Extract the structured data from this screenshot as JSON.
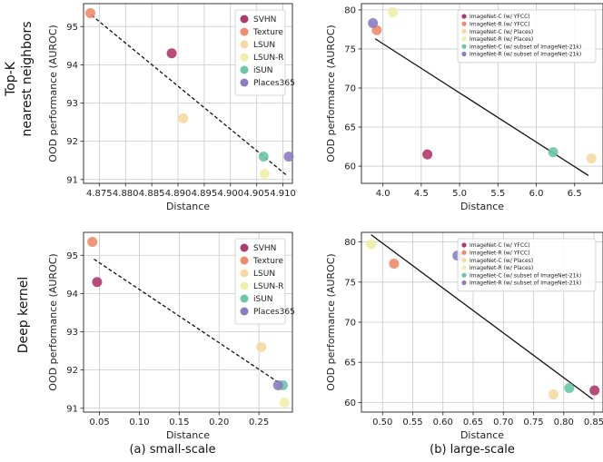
{
  "row_labels": [
    [
      "Top-K",
      "nearest neighbors"
    ],
    [
      "Deep kernel"
    ]
  ],
  "captions": [
    "(a) small-scale",
    "(b) large-scale"
  ],
  "chart_data": [
    {
      "type": "scatter",
      "title": "",
      "xlabel": "Distance",
      "ylabel": "OOD performance (AUROC)",
      "xlim": [
        4.872,
        4.9118
      ],
      "ylim": [
        90.9,
        95.6
      ],
      "xticks": [
        4.875,
        4.88,
        4.885,
        4.89,
        4.895,
        4.9,
        4.905,
        4.91
      ],
      "xtick_labels": [
        "4.875",
        "4.880",
        "4.885",
        "4.890",
        "4.895",
        "4.900",
        "4.905",
        "4.910"
      ],
      "yticks": [
        91,
        92,
        93,
        94,
        95
      ],
      "ytick_labels": [
        "91",
        "92",
        "93",
        "94",
        "95"
      ],
      "grid": true,
      "legend": "top-right",
      "legend_size": "normal",
      "series": [
        {
          "name": "SVHN",
          "color": "#b03a6e",
          "x": 4.8888,
          "y": 94.3
        },
        {
          "name": "Texture",
          "color": "#f08a6a",
          "x": 4.8733,
          "y": 95.35
        },
        {
          "name": "LSUN",
          "color": "#f5d9a0",
          "x": 4.891,
          "y": 92.6
        },
        {
          "name": "LSUN-R",
          "color": "#eef0a8",
          "x": 4.9065,
          "y": 91.15
        },
        {
          "name": "iSUN",
          "color": "#6cc7a7",
          "x": 4.9063,
          "y": 91.6
        },
        {
          "name": "Places365",
          "color": "#8c7cc0",
          "x": 4.9111,
          "y": 91.6
        }
      ],
      "trend": {
        "x": [
          4.8735,
          4.9108
        ],
        "y": [
          95.3,
          91.1
        ],
        "style": "dashed"
      }
    },
    {
      "type": "scatter",
      "title": "",
      "xlabel": "Distance",
      "ylabel": "OOD performance (AUROC)",
      "xlim": [
        3.72,
        6.87
      ],
      "ylim": [
        57.8,
        80.8
      ],
      "xticks": [
        4.0,
        4.5,
        5.0,
        5.5,
        6.0,
        6.5
      ],
      "xtick_labels": [
        "4.0",
        "4.5",
        "5.0",
        "5.5",
        "6.0",
        "6.5"
      ],
      "yticks": [
        60,
        65,
        70,
        75,
        80
      ],
      "ytick_labels": [
        "60",
        "65",
        "70",
        "75",
        "80"
      ],
      "grid": true,
      "legend": "top-right",
      "legend_size": "small",
      "series": [
        {
          "name": "ImageNet-C (w/ YFCC)",
          "color": "#b03a6e",
          "x": 4.58,
          "y": 61.5
        },
        {
          "name": "ImageNet-R (w/ YFCC)",
          "color": "#f08a6a",
          "x": 3.92,
          "y": 77.4
        },
        {
          "name": "ImageNet-C (w/ Places)",
          "color": "#f5d9a0",
          "x": 6.72,
          "y": 61.0
        },
        {
          "name": "ImageNet-R (w/ Places)",
          "color": "#eef0a8",
          "x": 4.13,
          "y": 79.7
        },
        {
          "name": "ImageNet-C (w/ subset of ImageNet-21k)",
          "color": "#6cc7a7",
          "x": 6.22,
          "y": 61.8
        },
        {
          "name": "ImageNet-R (w/ subset of ImageNet-21k)",
          "color": "#8c7cc0",
          "x": 3.87,
          "y": 78.3
        }
      ],
      "trend": {
        "x": [
          3.9,
          6.68
        ],
        "y": [
          76.3,
          58.8
        ],
        "style": "solid"
      }
    },
    {
      "type": "scatter",
      "title": "",
      "xlabel": "Distance",
      "ylabel": "OOD performance (AUROC)",
      "xlim": [
        0.03,
        0.292
      ],
      "ylim": [
        90.9,
        95.6
      ],
      "xticks": [
        0.05,
        0.1,
        0.15,
        0.2,
        0.25
      ],
      "xtick_labels": [
        "0.05",
        "0.10",
        "0.15",
        "0.20",
        "0.25"
      ],
      "yticks": [
        91,
        92,
        93,
        94,
        95
      ],
      "ytick_labels": [
        "91",
        "92",
        "93",
        "94",
        "95"
      ],
      "grid": true,
      "legend": "top-right",
      "legend_size": "normal",
      "series": [
        {
          "name": "SVHN",
          "color": "#b03a6e",
          "x": 0.047,
          "y": 94.3
        },
        {
          "name": "Texture",
          "color": "#f08a6a",
          "x": 0.041,
          "y": 95.35
        },
        {
          "name": "LSUN",
          "color": "#f5d9a0",
          "x": 0.253,
          "y": 92.6
        },
        {
          "name": "LSUN-R",
          "color": "#eef0a8",
          "x": 0.282,
          "y": 91.15
        },
        {
          "name": "iSUN",
          "color": "#6cc7a7",
          "x": 0.28,
          "y": 91.6
        },
        {
          "name": "Places365",
          "color": "#8c7cc0",
          "x": 0.274,
          "y": 91.6
        }
      ],
      "trend": {
        "x": [
          0.043,
          0.28
        ],
        "y": [
          94.9,
          91.6
        ],
        "style": "dashed"
      }
    },
    {
      "type": "scatter",
      "title": "",
      "xlabel": "Distance",
      "ylabel": "OOD performance (AUROC)",
      "xlim": [
        0.465,
        0.865
      ],
      "ylim": [
        58.8,
        81.2
      ],
      "xticks": [
        0.5,
        0.55,
        0.6,
        0.65,
        0.7,
        0.75,
        0.8,
        0.85
      ],
      "xtick_labels": [
        "0.50",
        "0.55",
        "0.60",
        "0.65",
        "0.70",
        "0.75",
        "0.80",
        "0.85"
      ],
      "yticks": [
        60,
        65,
        70,
        75,
        80
      ],
      "ytick_labels": [
        "60",
        "65",
        "70",
        "75",
        "80"
      ],
      "grid": true,
      "legend": "top-right",
      "legend_size": "small",
      "series": [
        {
          "name": "ImageNet-C (w/ YFCC)",
          "color": "#b03a6e",
          "x": 0.851,
          "y": 61.5
        },
        {
          "name": "ImageNet-R (w/ YFCC)",
          "color": "#f08a6a",
          "x": 0.519,
          "y": 77.3
        },
        {
          "name": "ImageNet-C (w/ Places)",
          "color": "#f5d9a0",
          "x": 0.783,
          "y": 61.0
        },
        {
          "name": "ImageNet-R (w/ Places)",
          "color": "#eef0a8",
          "x": 0.481,
          "y": 79.7
        },
        {
          "name": "ImageNet-C (w/ subset of ImageNet-21k)",
          "color": "#6cc7a7",
          "x": 0.809,
          "y": 61.8
        },
        {
          "name": "ImageNet-R (w/ subset of ImageNet-21k)",
          "color": "#8c7cc0",
          "x": 0.624,
          "y": 78.3
        }
      ],
      "trend": {
        "x": [
          0.481,
          0.848
        ],
        "y": [
          80.9,
          60.4
        ],
        "style": "solid"
      }
    }
  ]
}
